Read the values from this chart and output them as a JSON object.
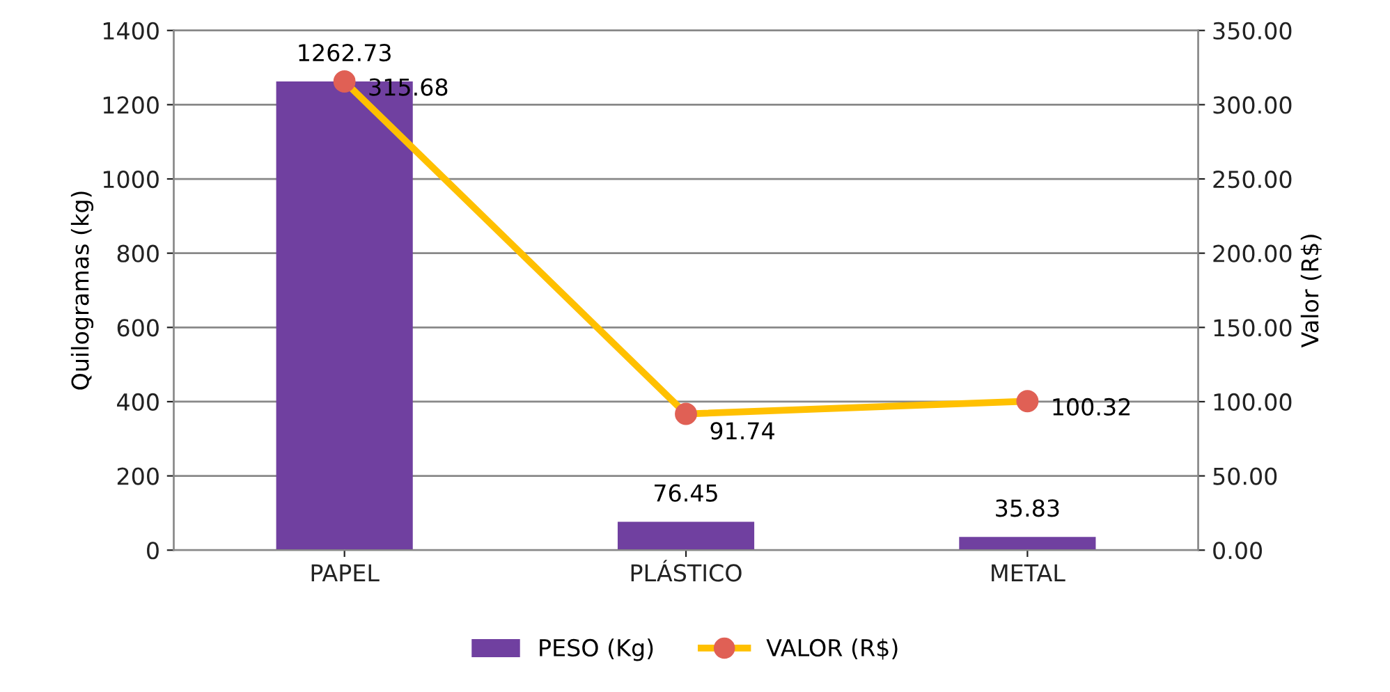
{
  "chart_data": {
    "type": "bar",
    "ylabel": "Quilogramas (kg)",
    "y2label": "Valor (R$)",
    "categories": [
      "PAPEL",
      "PLÁSTICO",
      "METAL"
    ],
    "series": [
      {
        "name": "PESO (Kg)",
        "color": "#7040a0",
        "values": [
          1262.73,
          76.45,
          35.83
        ]
      },
      {
        "name": "VALOR (R$)",
        "type": "line",
        "axis": "y2",
        "color": "#ffc000",
        "colors": [
          "#e06055",
          "#e06055",
          "#e06055"
        ],
        "marker": "circle",
        "values": [
          315.68,
          91.74,
          100.32
        ]
      }
    ],
    "ylim": [
      0,
      1400
    ],
    "yticks": [
      0,
      200,
      400,
      600,
      800,
      1000,
      1200,
      1400
    ],
    "y2lim": [
      0,
      350
    ],
    "y2ticks": [
      {
        "value": 0,
        "label": "0.00"
      },
      {
        "value": 50,
        "label": "50.00"
      },
      {
        "value": 100,
        "label": "100.00"
      },
      {
        "value": 150,
        "label": "150.00"
      },
      {
        "value": 200,
        "label": "200.00"
      },
      {
        "value": 250,
        "label": "250.00"
      },
      {
        "value": 300,
        "label": "300.00"
      },
      {
        "value": 350,
        "label": "350.00"
      }
    ],
    "grid": "y",
    "legend": "bottom",
    "data_labels": true
  }
}
